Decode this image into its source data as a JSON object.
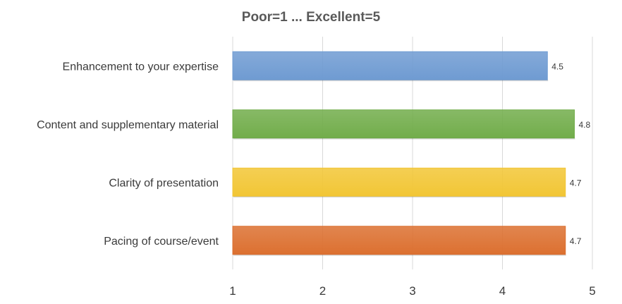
{
  "chart_data": {
    "type": "bar",
    "orientation": "horizontal",
    "title": "Poor=1 ... Excellent=5",
    "categories": [
      "Enhancement to your expertise",
      "Content and supplementary material",
      "Clarity of presentation",
      "Pacing of course/event"
    ],
    "values": [
      4.5,
      4.8,
      4.7,
      4.7
    ],
    "data_labels": [
      "4.5",
      "4.8",
      "4.7",
      "4.7"
    ],
    "colors": [
      "#6f9bd2",
      "#72ad4b",
      "#f2c635",
      "#dc7030"
    ],
    "xlim": [
      1,
      5
    ],
    "xticks": [
      1,
      2,
      3,
      4,
      5
    ],
    "tick_labels": [
      "1",
      "2",
      "3",
      "4",
      "5"
    ],
    "grid": "vertical",
    "legend": "none"
  }
}
